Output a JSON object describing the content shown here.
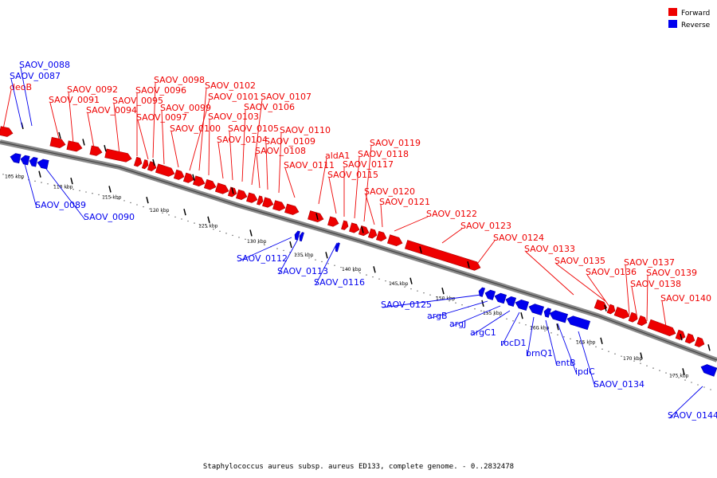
{
  "caption": "Staphylococcus aureus subsp. aureus ED133, complete genome. - 0..2832478",
  "legend": [
    {
      "name": "Forward",
      "color": "#ee0000"
    },
    {
      "name": "Reverse",
      "color": "#0000ee"
    }
  ],
  "ticks": [
    "105 kbp",
    "110 kbp",
    "115 kbp",
    "120 kbp",
    "125 kbp",
    "130 kbp",
    "135 kbp",
    "140 kbp",
    "145 kbp",
    "150 kbp",
    "155 kbp",
    "160 kbp",
    "165 kbp",
    "170 kbp",
    "175 kbp"
  ],
  "forward_labels": [
    "deoB",
    "SAOV_0091",
    "SAOV_0092",
    "SAOV_0094",
    "SAOV_0095",
    "SAOV_0096",
    "SAOV_0097",
    "SAOV_0098",
    "SAOV_0099",
    "SAOV_0100",
    "SAOV_0101",
    "SAOV_0102",
    "SAOV_0103",
    "SAOV_0104",
    "SAOV_0105",
    "SAOV_0106",
    "SAOV_0107",
    "SAOV_0108",
    "SAOV_0109",
    "SAOV_0110",
    "SAOV_0111",
    "aldA1",
    "SAOV_0115",
    "SAOV_0117",
    "SAOV_0118",
    "SAOV_0119",
    "SAOV_0120",
    "SAOV_0121",
    "SAOV_0122",
    "SAOV_0123",
    "SAOV_0124",
    "SAOV_0133",
    "SAOV_0135",
    "SAOV_0136",
    "SAOV_0137",
    "SAOV_0138",
    "SAOV_0139",
    "SAOV_0140"
  ],
  "reverse_labels": [
    "SAOV_0087",
    "SAOV_0088",
    "SAOV_0089",
    "SAOV_0090",
    "SAOV_0112",
    "SAOV_0113",
    "SAOV_0116",
    "SAOV_0125",
    "argB",
    "argJ",
    "argC1",
    "rocD1",
    "brnQ1",
    "entB",
    "ipdC",
    "SAOV_0134",
    "SAOV_0144"
  ]
}
